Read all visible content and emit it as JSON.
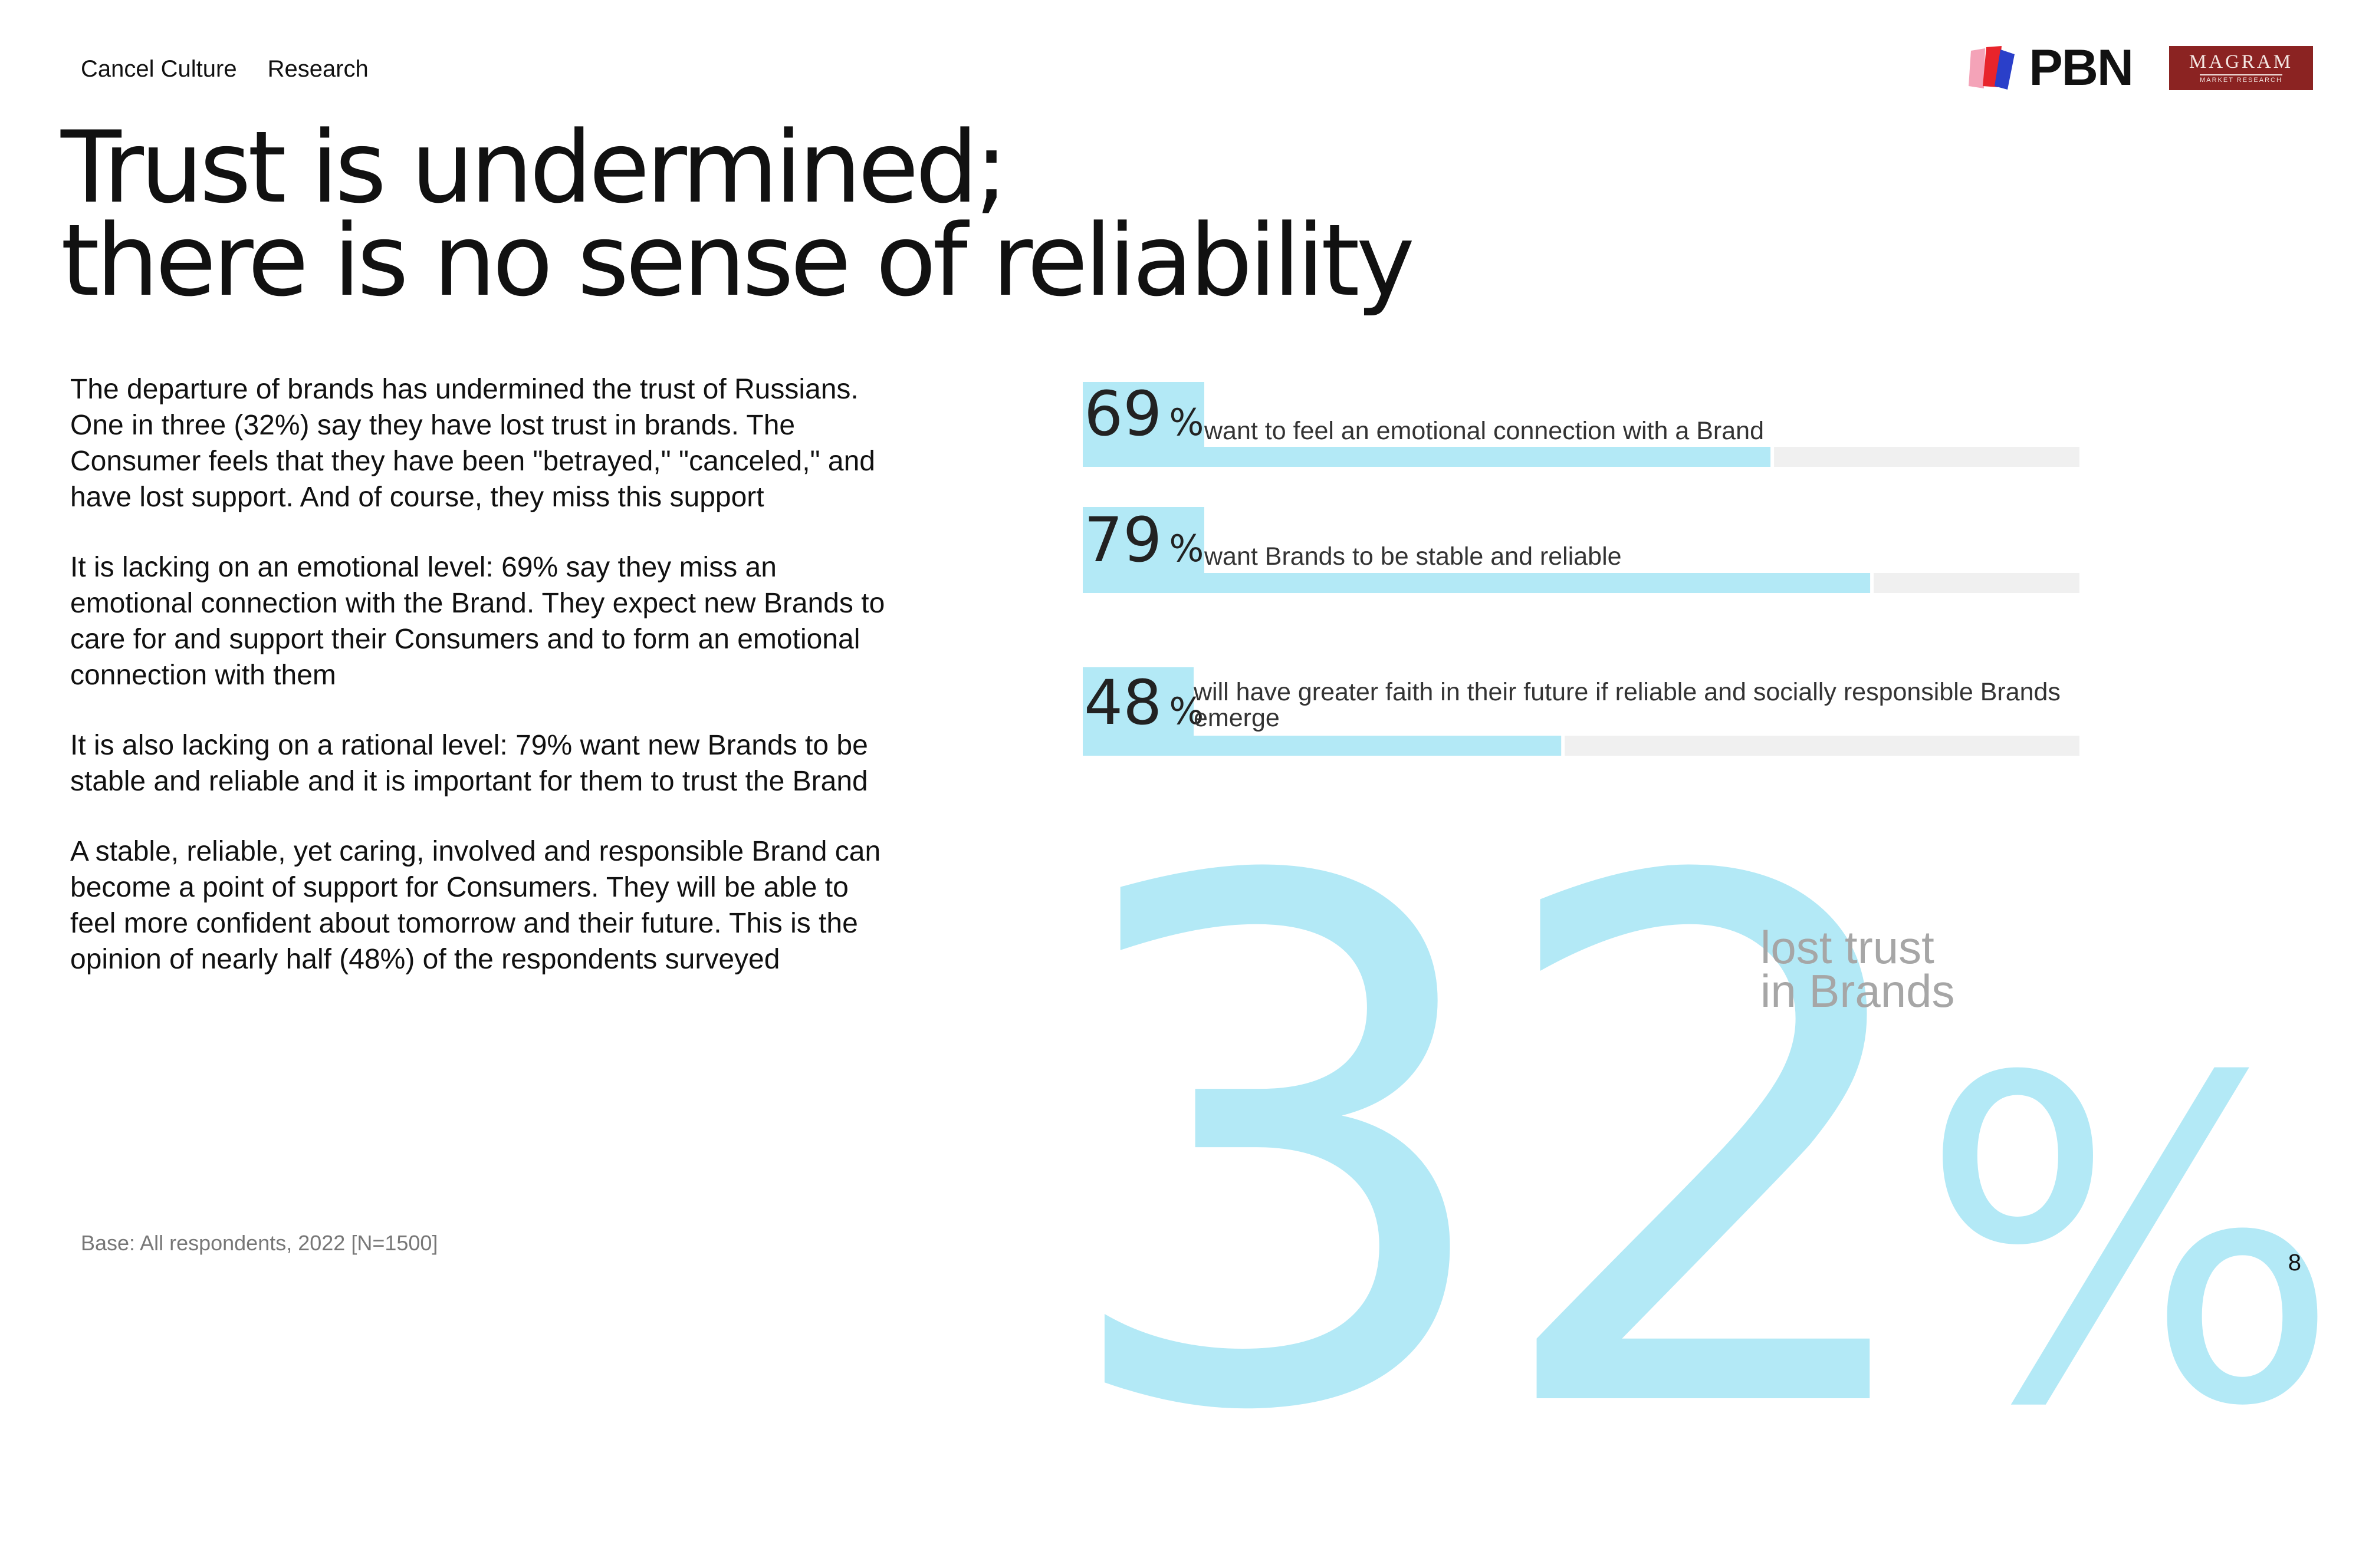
{
  "nav": {
    "section": "Cancel Culture",
    "item": "Research"
  },
  "logos": {
    "pbn": "PBN",
    "magram_line1": "MAGRAM",
    "magram_line2": "MARKET RESEARCH"
  },
  "title": {
    "line1": "Trust is undermined;",
    "line2": "there is no sense of reliability"
  },
  "body": {
    "p1": "The departure of brands has undermined the trust of Russians. One in three (32%) say they have lost trust in brands. The Consumer feels that they have been \"betrayed,\" \"canceled,\" and have lost support. And of course, they miss this support",
    "p2": "It is lacking on an emotional level: 69% say they miss an emotional connection with the Brand. They expect new Brands to care for and support their Consumers and to form an emotional connection with them",
    "p3": "It is also lacking on a rational level: 79% want new Brands to be stable and reliable and it is important for them to trust the Brand",
    "p4": "A stable, reliable, yet caring, involved and responsible Brand can become a point of support for Consumers. They will be able to feel more confident about tomorrow and their future. This is the opinion of nearly half (48%) of the respondents surveyed"
  },
  "base_note": "Base: All respondents, 2022 [N=1500]",
  "page_number": "8",
  "highlight": {
    "value": "32",
    "unit": "%",
    "label_line1": "lost trust",
    "label_line2": "in Brands"
  },
  "colors": {
    "accent": "#b3e9f6",
    "track": "#f0f0f0",
    "text": "#111111",
    "muted": "#a6a6a6",
    "brand_red": "#8b2322"
  },
  "chart_data": {
    "type": "bar",
    "orientation": "horizontal",
    "unit": "%",
    "xlim": [
      0,
      100
    ],
    "categories": [
      "want to feel an emotional connection with a Brand",
      "want Brands to be stable and reliable",
      "will have greater faith in their future if reliable and socially responsible Brands emerge"
    ],
    "values": [
      69,
      79,
      48
    ],
    "value_labels": [
      "69",
      "79",
      "48"
    ],
    "label_lines": [
      [
        "want to feel an emotional connection with a Brand"
      ],
      [
        "want Brands to be stable and reliable"
      ],
      [
        "will have greater faith in their future if reliable and socially responsible Brands",
        "emerge"
      ]
    ],
    "grid": false
  }
}
